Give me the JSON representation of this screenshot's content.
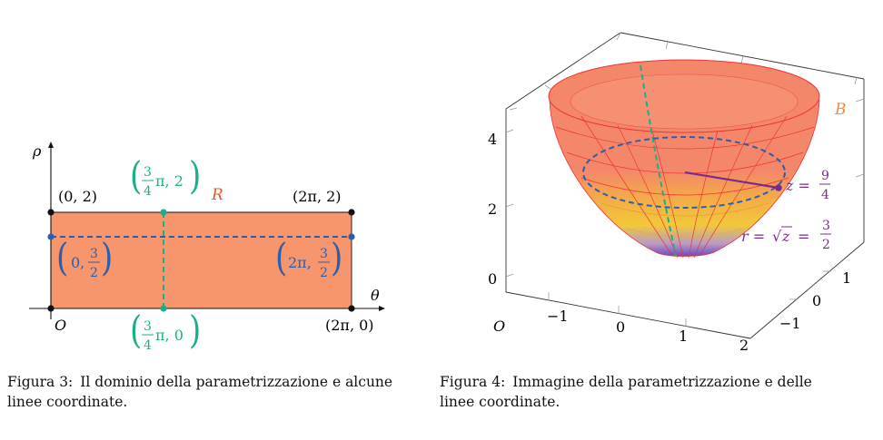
{
  "figure3": {
    "axis_rho": "ρ",
    "axis_theta": "θ",
    "origin": "O",
    "region_label": "R",
    "corner_tl": "(0, 2)",
    "corner_tr": "(2π, 2)",
    "corner_br": "(2π, 0)",
    "left_point": {
      "open": "(",
      "a": "0,",
      "num": "3",
      "den": "2",
      "close": ")"
    },
    "right_point": {
      "open": "(",
      "a": "2π,",
      "num": "3",
      "den": "2",
      "close": ")"
    },
    "top_point": {
      "open": "(",
      "num": "3",
      "den": "4",
      "a": "π, 2",
      "close": ")"
    },
    "bottom_point": {
      "open": "(",
      "num": "3",
      "den": "4",
      "a": "π, 0",
      "close": ")"
    },
    "caption_number": "Figura 3:",
    "caption_text": "Il dominio della parametrizzazione e alcune linee coordinate."
  },
  "figure4": {
    "surface_label": "B",
    "origin": "O",
    "z_ticks": [
      "4",
      "2",
      "0"
    ],
    "x_ticks": [
      "−1",
      "0",
      "1",
      "2"
    ],
    "y_ticks": [
      "1",
      "0",
      "−1"
    ],
    "z_label": {
      "lhs": "z =",
      "num": "9",
      "den": "4"
    },
    "r_label": {
      "lhs": "r =",
      "sqrt": "√",
      "rad": "z",
      "eq": "=",
      "num": "3",
      "den": "2"
    },
    "caption_number": "Figura 4:",
    "caption_text": "Immagine della parametrizzazione e delle linee coordinate."
  },
  "colors": {
    "region_fill": "#f7956c",
    "dashed_blue": "#2b5fae",
    "dashed_teal": "#1aaf8a",
    "region_label": "#e05a2a",
    "surface_label": "#f08a3c",
    "purple": "#7b2a8c"
  }
}
